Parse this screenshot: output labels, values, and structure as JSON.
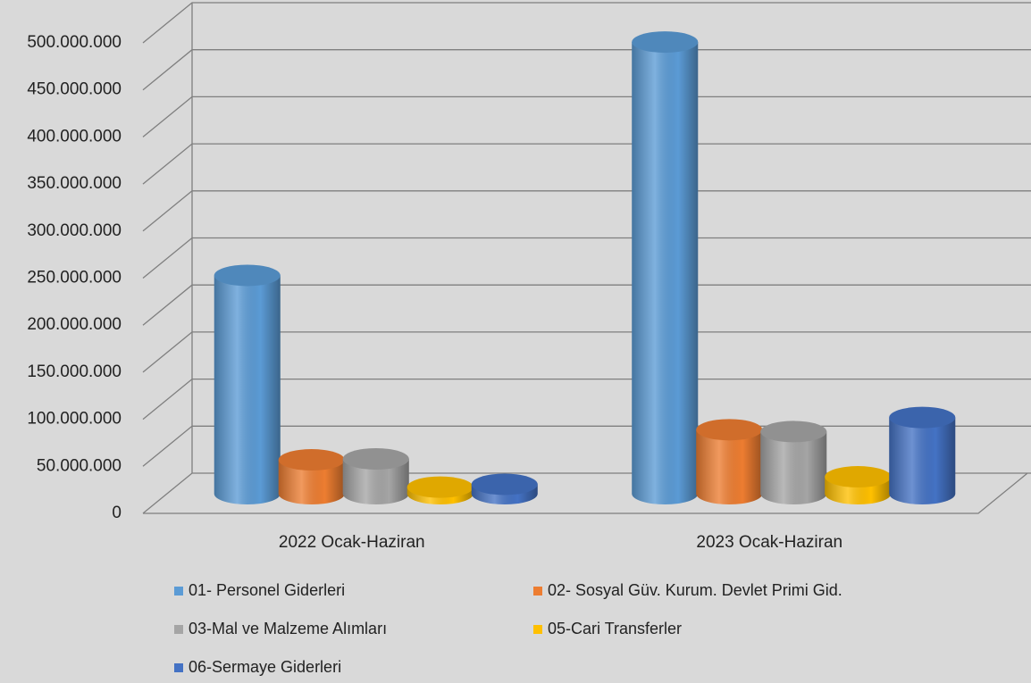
{
  "chart_data": {
    "type": "bar3d-cylinder",
    "categories": [
      "2022 Ocak-Haziran",
      "2023 Ocak-Haziran"
    ],
    "series": [
      {
        "name": "01- Personel Giderleri",
        "color": "#5b9bd5",
        "values": [
          232000000,
          480000000
        ]
      },
      {
        "name": "02- Sosyal Güv. Kurum. Devlet Primi Gid.",
        "color": "#ed7d31",
        "values": [
          36000000,
          68000000
        ]
      },
      {
        "name": "03-Mal ve Malzeme Alımları",
        "color": "#a5a5a5",
        "values": [
          37000000,
          66000000
        ]
      },
      {
        "name": "05-Cari Transferler",
        "color": "#ffc000",
        "values": [
          7000000,
          18000000
        ]
      },
      {
        "name": "06-Sermaye Giderleri",
        "color": "#4472c4",
        "values": [
          10000000,
          81000000
        ]
      }
    ],
    "ylim": [
      0,
      500000000
    ],
    "yticks": [
      0,
      {
        "value": 50000000,
        "label": "50.000.000"
      },
      {
        "value": 100000000,
        "label": "100.000.000"
      },
      {
        "value": 150000000,
        "label": "150.000.000"
      },
      {
        "value": 200000000,
        "label": "200.000.000"
      },
      {
        "value": 250000000,
        "label": "250.000.000"
      },
      {
        "value": 300000000,
        "label": "300.000.000"
      },
      {
        "value": 350000000,
        "label": "350.000.000"
      },
      {
        "value": 400000000,
        "label": "400.000.000"
      },
      {
        "value": 450000000,
        "label": "450.000.000"
      },
      {
        "value": 500000000,
        "label": "500.000.000"
      }
    ],
    "grid": true,
    "legend": "bottom"
  }
}
